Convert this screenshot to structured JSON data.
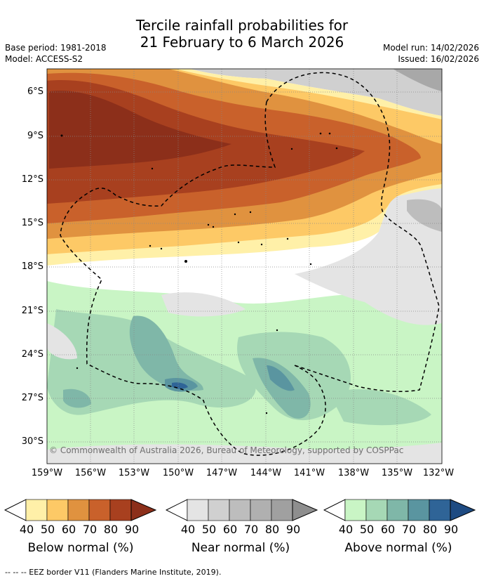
{
  "title": {
    "line1": "Tercile rainfall probabilities for",
    "line2": "21 February to 6 March 2026"
  },
  "meta": {
    "base_period": "Base period: 1981-2018",
    "model": "Model: ACCESS-S2",
    "model_run": "Model run: 14/02/2026",
    "issued": "Issued: 16/02/2026"
  },
  "map": {
    "latitude_labels": [
      "6°S",
      "9°S",
      "12°S",
      "15°S",
      "18°S",
      "21°S",
      "24°S",
      "27°S",
      "30°S"
    ],
    "longitude_labels": [
      "159°W",
      "156°W",
      "153°W",
      "150°W",
      "147°W",
      "144°W",
      "141°W",
      "138°W",
      "135°W",
      "132°W"
    ],
    "copyright": "© Commonwealth of Australia 2026, Bureau of Meteorology, supported by COSPPac",
    "colors": {
      "below": [
        "#fff0a8",
        "#fdc966",
        "#e0923f",
        "#c9612b",
        "#a8401f",
        "#8c2f1a"
      ],
      "near": [
        "#ffffff",
        "#e4e4e4",
        "#d0d0d0",
        "#bdbdbd",
        "#a8a8a8",
        "#8e8e8e"
      ],
      "above": [
        "#c9f5c5",
        "#a6d8b5",
        "#7fb7a8",
        "#5a95a0",
        "#2f6497",
        "#1e4b82"
      ]
    }
  },
  "legend": {
    "ticks": [
      "40",
      "50",
      "60",
      "70",
      "80",
      "90"
    ],
    "below_title": "Below normal (%)",
    "near_title": "Near normal (%)",
    "above_title": "Above normal (%)"
  },
  "footer": "--  --  -- EEZ border V11 (Flanders Marine Institute, 2019)."
}
